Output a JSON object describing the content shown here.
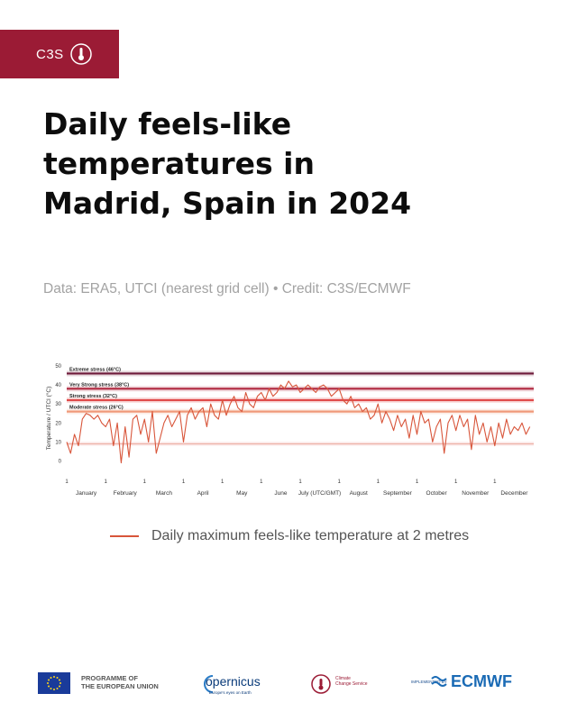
{
  "brand": {
    "tab_label": "C3S",
    "tab_color": "#9b1b35"
  },
  "title": "Daily feels-like temperatures in Madrid, Spain in 2024",
  "subtitle": "Data: ERA5, UTCI (nearest grid cell) • Credit: C3S/ECMWF",
  "chart_data": {
    "type": "line",
    "ylabel": "Temperature / UTCI (°C)",
    "xlabel": "",
    "x_axis_unit_label": "July (UTC/GMT)",
    "ylim": [
      -5,
      50
    ],
    "yticks": [
      0,
      10,
      20,
      30,
      40,
      50
    ],
    "grid": false,
    "months": [
      "January",
      "February",
      "March",
      "April",
      "May",
      "June",
      "July (UTC/GMT)",
      "August",
      "September",
      "October",
      "November",
      "December"
    ],
    "month_tick_day": "1",
    "stress_bands": [
      {
        "label": "Extreme stress (46°C)",
        "threshold": 46,
        "color": "#6e1a3a"
      },
      {
        "label": "Very Strong stress (38°C)",
        "threshold": 38,
        "color": "#b0283f"
      },
      {
        "label": "Strong stress (32°C)",
        "threshold": 32,
        "color": "#e04a4a"
      },
      {
        "label": "Moderate stress (26°C)",
        "threshold": 26,
        "color": "#f09a7a"
      }
    ],
    "series": [
      {
        "name": "Daily maximum feels-like temperature at 2 metres",
        "color": "#d8553a",
        "x_month": [
          0,
          0.1,
          0.2,
          0.3,
          0.4,
          0.5,
          0.6,
          0.7,
          0.8,
          0.9,
          1.0,
          1.1,
          1.2,
          1.3,
          1.4,
          1.5,
          1.6,
          1.7,
          1.8,
          1.9,
          2.0,
          2.1,
          2.2,
          2.3,
          2.4,
          2.5,
          2.6,
          2.7,
          2.8,
          2.9,
          3.0,
          3.1,
          3.2,
          3.3,
          3.4,
          3.5,
          3.6,
          3.7,
          3.8,
          3.9,
          4.0,
          4.1,
          4.2,
          4.3,
          4.4,
          4.5,
          4.6,
          4.7,
          4.8,
          4.9,
          5.0,
          5.1,
          5.2,
          5.3,
          5.4,
          5.5,
          5.6,
          5.7,
          5.8,
          5.9,
          6.0,
          6.1,
          6.2,
          6.3,
          6.4,
          6.5,
          6.6,
          6.7,
          6.8,
          6.9,
          7.0,
          7.1,
          7.2,
          7.3,
          7.4,
          7.5,
          7.6,
          7.7,
          7.8,
          7.9,
          8.0,
          8.1,
          8.2,
          8.3,
          8.4,
          8.5,
          8.6,
          8.7,
          8.8,
          8.9,
          9.0,
          9.1,
          9.2,
          9.3,
          9.4,
          9.5,
          9.6,
          9.7,
          9.8,
          9.9,
          10.0,
          10.1,
          10.2,
          10.3,
          10.4,
          10.5,
          10.6,
          10.7,
          10.8,
          10.9,
          11.0,
          11.1,
          11.2,
          11.3,
          11.4,
          11.5,
          11.6,
          11.7,
          11.8,
          11.9
        ],
        "values": [
          10,
          4,
          14,
          8,
          22,
          25,
          24,
          22,
          24,
          20,
          18,
          22,
          8,
          20,
          -1,
          18,
          2,
          22,
          24,
          14,
          22,
          10,
          26,
          4,
          12,
          20,
          24,
          18,
          22,
          26,
          10,
          24,
          28,
          22,
          26,
          28,
          18,
          30,
          24,
          22,
          32,
          24,
          30,
          34,
          28,
          26,
          36,
          30,
          28,
          34,
          36,
          32,
          38,
          34,
          36,
          40,
          38,
          42,
          39,
          40,
          36,
          38,
          40,
          38,
          36,
          39,
          40,
          38,
          34,
          36,
          38,
          32,
          30,
          34,
          28,
          30,
          26,
          28,
          22,
          24,
          30,
          20,
          26,
          22,
          16,
          24,
          18,
          22,
          12,
          24,
          14,
          26,
          20,
          22,
          10,
          18,
          22,
          4,
          20,
          24,
          16,
          24,
          18,
          22,
          6,
          24,
          14,
          20,
          10,
          18,
          8,
          20,
          12,
          22,
          14,
          18,
          16,
          20,
          14,
          18
        ]
      }
    ]
  },
  "legend": {
    "label": "Daily maximum feels-like temperature at 2 metres"
  },
  "footer": {
    "eu_text_1": "PROGRAMME OF",
    "eu_text_2": "THE EUROPEAN UNION",
    "copernicus": "opernicus",
    "copernicus_sub": "Europe's eyes on Earth",
    "c3s_text_1": "Climate",
    "c3s_text_2": "Change Service",
    "implemented_by": "IMPLEMENTED BY",
    "ecmwf": "ECMWF"
  }
}
